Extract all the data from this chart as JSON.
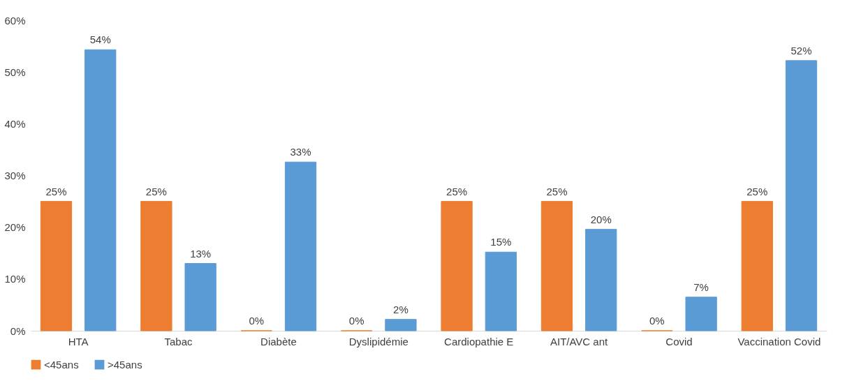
{
  "chart_data": {
    "type": "bar",
    "categories": [
      "HTA",
      "Tabac",
      "Diabète",
      "Dyslipidémie",
      "Cardiopathie E",
      "AIT/AVC ant",
      "Covid",
      "Vaccination Covid"
    ],
    "series": [
      {
        "name": "<45ans",
        "color": "#ed7d31",
        "values": [
          25,
          25,
          0,
          0,
          25,
          25,
          0,
          25
        ],
        "value_labels": [
          "25%",
          "25%",
          "0%",
          "0%",
          "25%",
          "25%",
          "0%",
          "25%"
        ]
      },
      {
        "name": ">45ans",
        "color": "#5b9bd5",
        "values": [
          54.3,
          13,
          32.6,
          2.2,
          15.2,
          19.6,
          6.5,
          52.2
        ],
        "value_labels": [
          "54%",
          "13%",
          "33%",
          "2%",
          "15%",
          "20%",
          "7%",
          "52%"
        ]
      }
    ],
    "ylim": [
      0,
      60
    ],
    "yticks": [
      {
        "value": 0,
        "label": "0%"
      },
      {
        "value": 10,
        "label": "10%"
      },
      {
        "value": 20,
        "label": "20%"
      },
      {
        "value": 30,
        "label": "30%"
      },
      {
        "value": 40,
        "label": "40%"
      },
      {
        "value": 50,
        "label": "50%"
      },
      {
        "value": 60,
        "label": "60%"
      }
    ],
    "legend": "bottom"
  }
}
